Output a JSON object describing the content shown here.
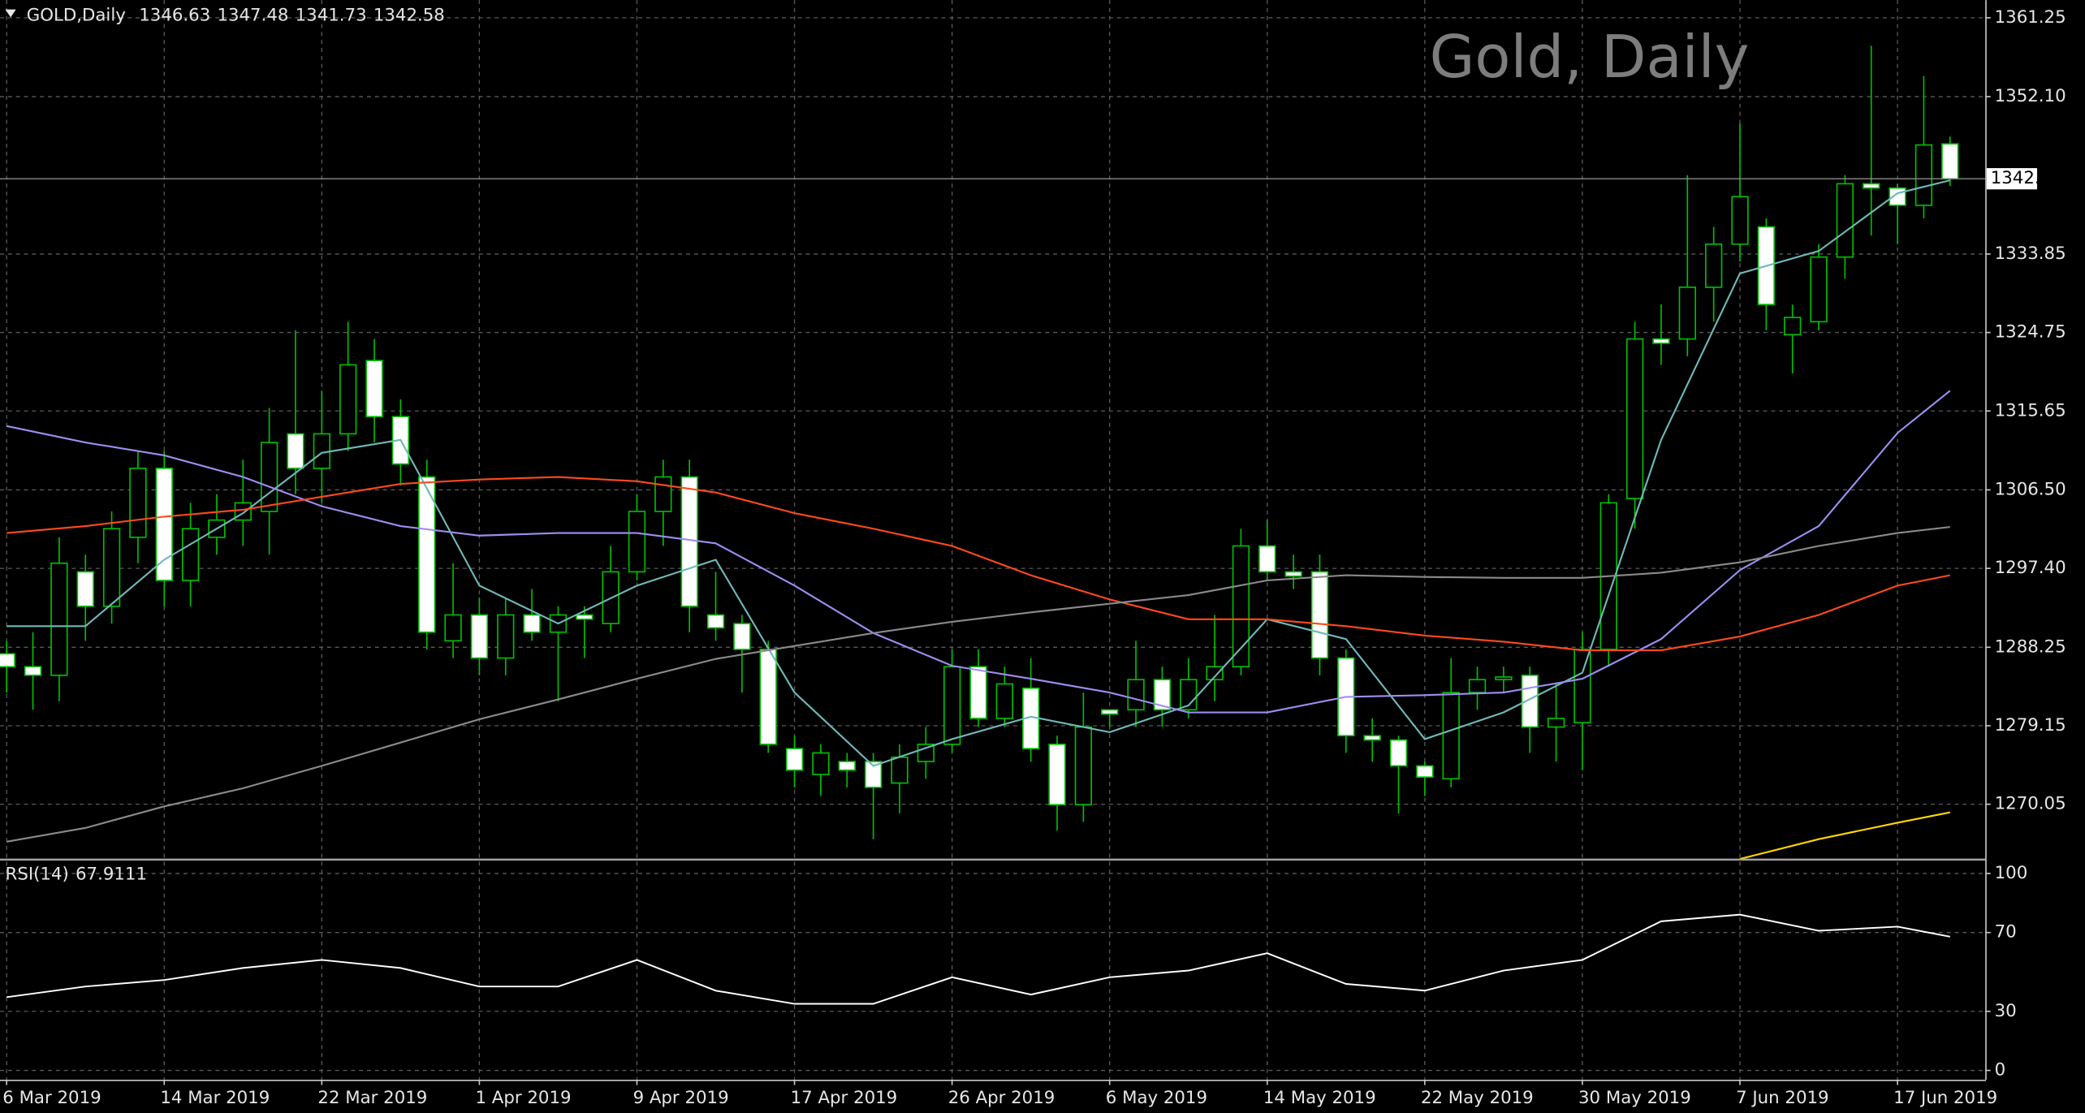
{
  "chart_data": [
    {
      "type": "candlestick",
      "title": "Gold, Daily",
      "symbol": "GOLD,Daily",
      "categories": [
        "6 Mar 2019",
        null,
        null,
        null,
        null,
        null,
        "14 Mar 2019",
        null,
        null,
        null,
        null,
        null,
        "22 Mar 2019",
        null,
        null,
        null,
        null,
        null,
        "1 Apr 2019",
        null,
        null,
        null,
        null,
        null,
        "9 Apr 2019",
        null,
        null,
        null,
        null,
        null,
        "17 Apr 2019",
        null,
        null,
        null,
        null,
        null,
        "26 Apr 2019",
        null,
        null,
        null,
        null,
        null,
        "6 May 2019",
        null,
        null,
        null,
        null,
        null,
        "14 May 2019",
        null,
        null,
        null,
        null,
        null,
        "22 May 2019",
        null,
        null,
        null,
        null,
        null,
        "30 May 2019",
        null,
        null,
        null,
        null,
        null,
        "7 Jun 2019",
        null,
        null,
        null,
        null,
        null,
        "17 Jun 2019",
        null,
        null
      ],
      "open": [
        1287.5,
        1286,
        1285,
        1297,
        1293,
        1301,
        1309,
        1296,
        1301,
        1303,
        1304,
        1313,
        1309,
        1313,
        1321.5,
        1315,
        1308,
        1289,
        1292,
        1287,
        1292,
        1290,
        1292,
        1291,
        1297,
        1304,
        1308,
        1292,
        1291,
        1288,
        1276.5,
        1273.5,
        1275,
        1275,
        1272.5,
        1275,
        1277,
        1286,
        1280,
        1283.5,
        1277,
        1270,
        1281,
        1281,
        1284.5,
        1281,
        1284.5,
        1286,
        1300,
        1297,
        1297,
        1287,
        1278,
        1277.5,
        1274.5,
        1273,
        1283,
        1284.5,
        1285,
        1279,
        1279.5,
        1288,
        1305.5,
        1324,
        1324,
        1330,
        1335,
        1337,
        1324.5,
        1326,
        1333.5,
        1342,
        1341.5,
        1339.5,
        1346.63
      ],
      "high": [
        1289,
        1290,
        1301,
        1299,
        1304,
        1311,
        1311,
        1305,
        1306,
        1310,
        1316,
        1325,
        1318,
        1326,
        1324,
        1317,
        1310,
        1298,
        1294,
        1294,
        1295,
        1293,
        1293,
        1300,
        1306,
        1310,
        1310,
        1297,
        1292,
        1289,
        1278,
        1277,
        1276,
        1276,
        1277,
        1279,
        1288,
        1288,
        1286,
        1287,
        1278,
        1283,
        1281,
        1289,
        1286,
        1287,
        1292,
        1302,
        1303,
        1299,
        1299,
        1288,
        1280,
        1278,
        1275,
        1287,
        1286,
        1286,
        1286,
        1284,
        1290,
        1306,
        1326,
        1328,
        1343,
        1337,
        1349,
        1338,
        1328,
        1335,
        1343,
        1358,
        1342,
        1354.5,
        1347.48
      ],
      "low": [
        1283,
        1281,
        1282,
        1289,
        1291,
        1298,
        1293,
        1293,
        1299,
        1300,
        1299,
        1306,
        1305,
        1311,
        1312,
        1307,
        1288,
        1287,
        1285,
        1285,
        1289,
        1282,
        1287,
        1290,
        1296,
        1300,
        1290,
        1289,
        1283,
        1276,
        1272,
        1271,
        1272,
        1266,
        1269,
        1273,
        1276,
        1279,
        1279,
        1275,
        1267,
        1268,
        1279,
        1279,
        1279,
        1280,
        1282,
        1285,
        1296,
        1295,
        1285,
        1276,
        1275,
        1269,
        1271,
        1272,
        1281,
        1283,
        1276,
        1275,
        1274,
        1286,
        1302,
        1321,
        1322,
        1326,
        1333,
        1325,
        1320,
        1325,
        1331,
        1336,
        1335,
        1338,
        1341.73
      ],
      "close": [
        1286,
        1285,
        1298,
        1293,
        1302,
        1309,
        1296,
        1302,
        1303,
        1305,
        1312,
        1309,
        1313,
        1321,
        1315,
        1309.5,
        1290,
        1292,
        1287,
        1292,
        1290,
        1292,
        1291.5,
        1297,
        1304,
        1308,
        1293,
        1290.5,
        1288,
        1277,
        1274,
        1276,
        1274,
        1272,
        1275.5,
        1277,
        1286,
        1280,
        1284,
        1276.5,
        1270,
        1279,
        1280.5,
        1284.5,
        1281,
        1284.5,
        1286,
        1300,
        1297,
        1296.5,
        1287,
        1278,
        1277.5,
        1274.5,
        1273.2,
        1283,
        1284.5,
        1284.8,
        1279,
        1280,
        1288,
        1305,
        1324,
        1323.5,
        1330,
        1335,
        1340.5,
        1328,
        1326.5,
        1333.5,
        1342,
        1341.5,
        1339.5,
        1346.5,
        1342.58
      ],
      "up_color": "#000000",
      "down_color": "#ffffff",
      "wick_color": "#00c000",
      "ylim": [
        1263.7,
        1363.3
      ],
      "yticks": [
        1270.05,
        1279.15,
        1288.25,
        {
          "value": 1297.4,
          "label": "1297.40"
        },
        {
          "value": 1306.5,
          "label": "1306.50"
        },
        1315.65,
        1324.75,
        1333.85,
        {
          "value": 1352.1,
          "label": "1352.10"
        },
        1361.25
      ],
      "grid": true,
      "lines": [
        {
          "color": "#6fb8b8",
          "x": [
            0,
            3,
            6,
            9,
            12,
            15,
            18,
            21,
            24,
            27,
            30,
            33,
            36,
            39,
            42,
            45,
            48,
            51,
            54,
            57,
            60,
            63,
            66,
            69,
            72,
            74
          ],
          "values": [
            1290.7,
            1290.7,
            1298.4,
            1303.8,
            1310.8,
            1312.3,
            1295.4,
            1291,
            1295.4,
            1298.4,
            1283,
            1274.5,
            1277.6,
            1280.2,
            1278.4,
            1281.5,
            1291.5,
            1289.2,
            1277.6,
            1280.7,
            1285.3,
            1312.3,
            1331.6,
            1334.2,
            1340.9,
            1342.4
          ]
        },
        {
          "color": "#a08cf0",
          "x": [
            0,
            3,
            6,
            9,
            12,
            15,
            18,
            21,
            24,
            27,
            30,
            33,
            36,
            39,
            42,
            45,
            48,
            51,
            54,
            57,
            60,
            63,
            66,
            69,
            72,
            74
          ],
          "values": [
            1313.9,
            1312,
            1310.5,
            1308,
            1304.6,
            1302.3,
            1301.2,
            1301.5,
            1301.5,
            1300.3,
            1295.4,
            1289.9,
            1286.1,
            1284.6,
            1283,
            1280.7,
            1280.7,
            1282.5,
            1282.7,
            1283,
            1284.6,
            1289.2,
            1297.2,
            1302.3,
            1313.1,
            1318
          ]
        },
        {
          "color": "#ff4a1c",
          "x": [
            0,
            3,
            6,
            9,
            12,
            15,
            18,
            21,
            24,
            27,
            30,
            33,
            36,
            39,
            42,
            45,
            48,
            51,
            54,
            57,
            60,
            63,
            66,
            69,
            72,
            74
          ],
          "values": [
            1301.5,
            1302.3,
            1303.4,
            1304.2,
            1305.7,
            1307.2,
            1307.7,
            1308,
            1307.5,
            1306.2,
            1303.8,
            1302,
            1300,
            1296.6,
            1293.8,
            1291.5,
            1291.5,
            1290.7,
            1289.6,
            1288.9,
            1287.9,
            1287.9,
            1289.5,
            1292,
            1295.4,
            1296.6
          ]
        },
        {
          "color": "#8a8a8a",
          "x": [
            0,
            3,
            6,
            9,
            12,
            15,
            18,
            21,
            24,
            27,
            30,
            33,
            36,
            39,
            42,
            45,
            48,
            51,
            54,
            57,
            60,
            63,
            66,
            69,
            72,
            74
          ],
          "values": [
            1265.7,
            1267.3,
            1269.8,
            1271.9,
            1274.5,
            1277.2,
            1279.9,
            1282.2,
            1284.6,
            1286.9,
            1288.4,
            1289.9,
            1291.2,
            1292.3,
            1293.3,
            1294.3,
            1296,
            1296.6,
            1296.4,
            1296.3,
            1296.3,
            1296.9,
            1298.1,
            1300,
            1301.5,
            1302.2
          ]
        },
        {
          "color": "#ffd700",
          "x": [
            66,
            69,
            72,
            74
          ],
          "values": [
            1263.7,
            1266,
            1267.9,
            1269.1
          ]
        }
      ]
    },
    {
      "type": "line",
      "title": "RSI(14)",
      "series": [
        {
          "color": "#ffffff",
          "x": [
            0,
            3,
            6,
            9,
            12,
            15,
            18,
            21,
            24,
            27,
            30,
            33,
            36,
            39,
            42,
            45,
            48,
            51,
            54,
            57,
            60,
            63,
            66,
            69,
            72,
            74
          ],
          "values": [
            37.2,
            42.6,
            45.9,
            52,
            56.1,
            52,
            42.6,
            42.6,
            56.1,
            40.5,
            33.8,
            33.8,
            47.3,
            38.5,
            47.3,
            50.7,
            59.5,
            43.9,
            40.5,
            50.7,
            56.1,
            75.7,
            79.1,
            70.9,
            73,
            67.9111
          ]
        }
      ],
      "ylim": [
        -4.7,
        106
      ],
      "yticks": [
        0,
        30,
        70,
        100
      ],
      "grid": true
    }
  ]
}
